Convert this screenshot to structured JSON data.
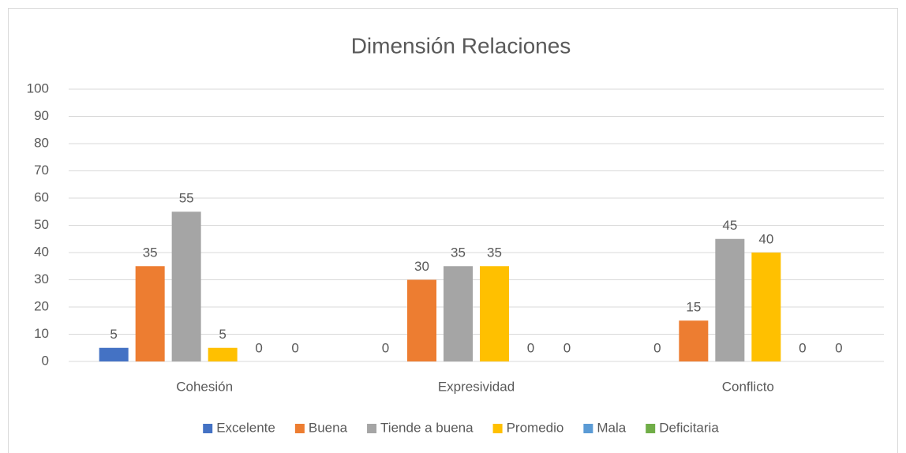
{
  "chart_data": {
    "type": "bar",
    "title": "Dimensión Relaciones",
    "categories": [
      "Cohesión",
      "Expresividad",
      "Conflicto"
    ],
    "series": [
      {
        "name": "Excelente",
        "color": "#4472c4",
        "values": [
          5,
          0,
          0
        ]
      },
      {
        "name": "Buena",
        "color": "#ed7d31",
        "values": [
          35,
          30,
          15
        ]
      },
      {
        "name": "Tiende a buena",
        "color": "#a5a5a5",
        "values": [
          55,
          35,
          45
        ]
      },
      {
        "name": "Promedio",
        "color": "#ffc000",
        "values": [
          5,
          35,
          40
        ]
      },
      {
        "name": "Mala",
        "color": "#5b9bd5",
        "values": [
          0,
          0,
          0
        ]
      },
      {
        "name": "Deficitaria",
        "color": "#70ad47",
        "values": [
          0,
          0,
          0
        ]
      }
    ],
    "ylim": [
      0,
      100
    ],
    "yticks": [
      0,
      10,
      20,
      30,
      40,
      50,
      60,
      70,
      80,
      90,
      100
    ],
    "grid": true,
    "legend": "bottom"
  }
}
